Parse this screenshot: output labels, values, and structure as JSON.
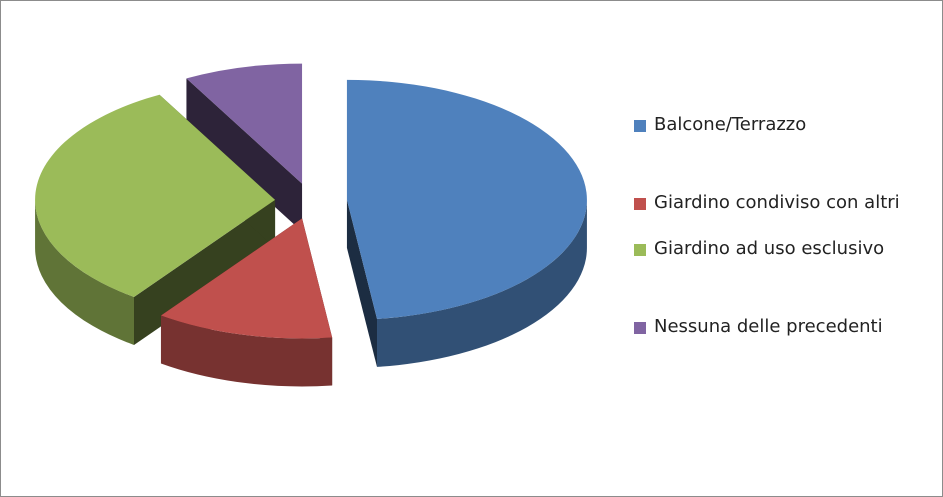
{
  "chart_data": {
    "type": "pie",
    "categories": [
      "Balcone/Terrazzo",
      "Giardino condiviso con altri",
      "Giardino ad uso esclusivo",
      "Nessuna delle precedenti"
    ],
    "values": [
      48,
      12,
      32,
      8
    ],
    "colors": [
      "#4f81bd",
      "#c0504d",
      "#9bbb59",
      "#8064a2"
    ],
    "legend": "right"
  }
}
